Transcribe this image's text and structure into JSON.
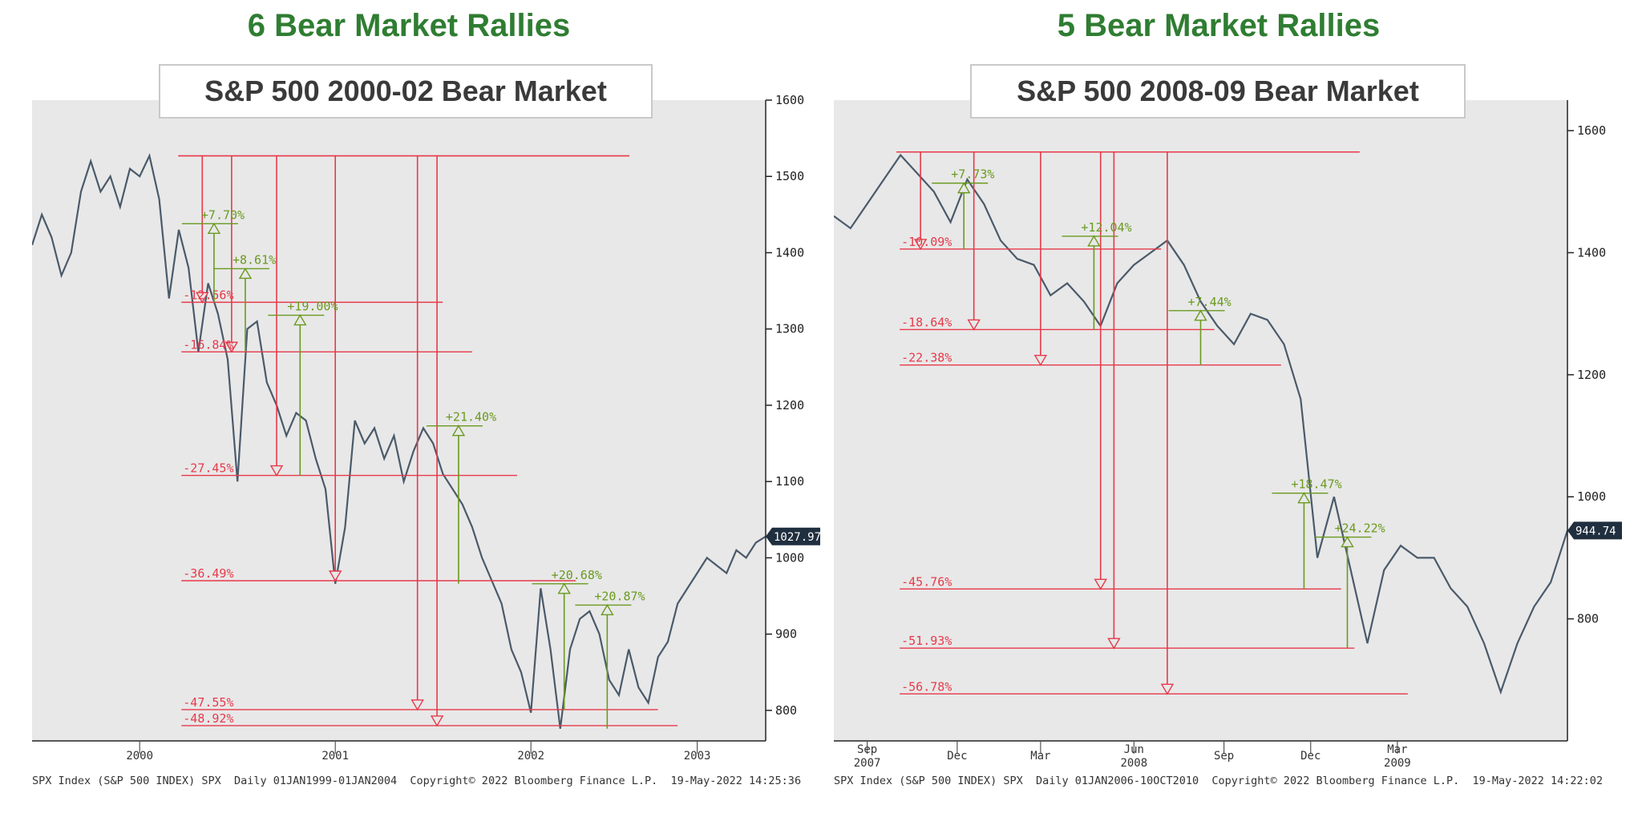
{
  "left": {
    "heading": "6 Bear Market Rallies",
    "box_title": "S&P 500 2000-02 Bear Market",
    "footer": "SPX Index (S&P 500 INDEX) SPX  Daily 01JAN1999-01JAN2004  Copyright© 2022 Bloomberg Finance L.P.  19-May-2022 14:25:36",
    "last_price": "1027.97"
  },
  "right": {
    "heading": "5 Bear Market Rallies",
    "box_title": "S&P 500 2008-09 Bear Market",
    "footer": "SPX Index (S&P 500 INDEX) SPX  Daily 01JAN2006-10OCT2010  Copyright© 2022 Bloomberg Finance L.P.  19-May-2022 14:22:02",
    "last_price": "944.74"
  },
  "colors": {
    "line": "#4a5a6a",
    "decline": "#e8394a",
    "rally": "#6a9a1f",
    "label_bg": "#1f2f3f"
  },
  "chart_data": [
    {
      "type": "line",
      "series": [
        {
          "name": "",
          "x": [
            1999.95,
            2000.0,
            2000.05,
            2000.1,
            2000.15,
            2000.2,
            2000.25,
            2000.3,
            2000.35,
            2000.4,
            2000.45,
            2000.5,
            2000.55,
            2000.6,
            2000.65,
            2000.7,
            2000.75,
            2000.8,
            2000.85,
            2000.9,
            2000.95,
            2001.0,
            2001.05,
            2001.1,
            2001.15,
            2001.2,
            2001.25,
            2001.3,
            2001.35,
            2001.4,
            2001.45,
            2001.5,
            2001.55,
            2001.6,
            2001.65,
            2001.7,
            2001.75,
            2001.8,
            2001.85,
            2001.9,
            2001.95,
            2002.0,
            2002.05,
            2002.1,
            2002.15,
            2002.2,
            2002.25,
            2002.3,
            2002.35,
            2002.4,
            2002.45,
            2002.5,
            2002.55,
            2002.6,
            2002.65,
            2002.7,
            2002.75,
            2002.8,
            2002.85,
            2002.9,
            2002.95,
            2003.0,
            2003.05,
            2003.1,
            2003.15,
            2003.2,
            2003.25,
            2003.3,
            2003.35,
            2003.4,
            2003.45,
            2003.5,
            2003.55,
            2003.6,
            2003.65,
            2003.7
          ],
          "y": [
            1410,
            1450,
            1420,
            1370,
            1400,
            1480,
            1520,
            1480,
            1500,
            1460,
            1510,
            1500,
            1527,
            1470,
            1340,
            1430,
            1380,
            1270,
            1360,
            1320,
            1260,
            1100,
            1300,
            1310,
            1230,
            1200,
            1160,
            1190,
            1180,
            1130,
            1090,
            966,
            1040,
            1180,
            1150,
            1170,
            1130,
            1160,
            1100,
            1140,
            1170,
            1150,
            1110,
            1090,
            1070,
            1040,
            1000,
            970,
            940,
            880,
            850,
            797,
            960,
            880,
            776,
            880,
            920,
            930,
            900,
            840,
            820,
            880,
            830,
            810,
            870,
            890,
            940,
            960,
            980,
            1000,
            990,
            980,
            1010,
            1000,
            1020,
            1027.97
          ]
        }
      ],
      "xlabel": "",
      "ylabel": "",
      "xlim": [
        1999.95,
        2003.7
      ],
      "ylim": [
        760,
        1600
      ],
      "xticks": [
        {
          "value": 2000.5,
          "label": "2000"
        },
        {
          "value": 2001.5,
          "label": "2001"
        },
        {
          "value": 2002.5,
          "label": "2002"
        },
        {
          "value": 2003.35,
          "label": "2003"
        }
      ],
      "yticks": [
        800,
        900,
        1000,
        1100,
        1200,
        1300,
        1400,
        1500,
        1600
      ],
      "peak": 1527,
      "declines": [
        {
          "label": "-12.56%",
          "x": 2000.82,
          "level": 1335
        },
        {
          "label": "-16.84%",
          "x": 2000.97,
          "level": 1270
        },
        {
          "label": "-27.45%",
          "x": 2001.2,
          "level": 1108
        },
        {
          "label": "-36.49%",
          "x": 2001.5,
          "level": 970
        },
        {
          "label": "-47.55%",
          "x": 2001.92,
          "level": 801
        },
        {
          "label": "-48.92%",
          "x": 2002.02,
          "level": 780
        }
      ],
      "rallies": [
        {
          "label": "+7.70%",
          "x": 2000.88,
          "from": 1335,
          "to": 1438
        },
        {
          "label": "+8.61%",
          "x": 2001.04,
          "from": 1270,
          "to": 1379
        },
        {
          "label": "+19.00%",
          "x": 2001.32,
          "from": 1108,
          "to": 1318
        },
        {
          "label": "+21.40%",
          "x": 2002.13,
          "from": 966,
          "to": 1173
        },
        {
          "label": "+20.68%",
          "x": 2002.67,
          "from": 801,
          "to": 966
        },
        {
          "label": "+20.87%",
          "x": 2002.89,
          "from": 776,
          "to": 938
        }
      ],
      "last_value": 1027.97
    },
    {
      "type": "line",
      "series": [
        {
          "name": "",
          "x": [
            2007.5,
            2007.55,
            2007.6,
            2007.65,
            2007.7,
            2007.75,
            2007.8,
            2007.85,
            2007.9,
            2007.95,
            2008.0,
            2008.05,
            2008.1,
            2008.15,
            2008.2,
            2008.25,
            2008.3,
            2008.35,
            2008.4,
            2008.45,
            2008.5,
            2008.55,
            2008.6,
            2008.65,
            2008.7,
            2008.75,
            2008.8,
            2008.85,
            2008.9,
            2008.95,
            2009.0,
            2009.05,
            2009.1,
            2009.15,
            2009.2,
            2009.25,
            2009.3,
            2009.35,
            2009.4,
            2009.45,
            2009.5,
            2009.55,
            2009.6,
            2009.65,
            2009.7
          ],
          "y": [
            1460,
            1440,
            1480,
            1520,
            1560,
            1530,
            1500,
            1450,
            1520,
            1480,
            1420,
            1390,
            1380,
            1330,
            1350,
            1320,
            1280,
            1350,
            1380,
            1400,
            1420,
            1380,
            1320,
            1280,
            1250,
            1300,
            1290,
            1250,
            1160,
            900,
            1000,
            880,
            760,
            880,
            920,
            900,
            900,
            850,
            820,
            760,
            680,
            760,
            820,
            860,
            944.74
          ]
        }
      ],
      "xlabel": "",
      "ylabel": "",
      "xlim": [
        2007.5,
        2009.7
      ],
      "ylim": [
        600,
        1650
      ],
      "xticks": [
        {
          "value": 2007.6,
          "label": "Sep",
          "year": "2007"
        },
        {
          "value": 2007.87,
          "label": "Dec"
        },
        {
          "value": 2008.12,
          "label": "Mar"
        },
        {
          "value": 2008.4,
          "label": "Jun",
          "year": "2008"
        },
        {
          "value": 2008.67,
          "label": "Sep"
        },
        {
          "value": 2008.93,
          "label": "Dec"
        },
        {
          "value": 2009.19,
          "label": "Mar",
          "year": "2009"
        }
      ],
      "yticks": [
        800,
        1000,
        1200,
        1400,
        1600
      ],
      "peak": 1565,
      "declines": [
        {
          "label": "-10.09%",
          "x": 2007.76,
          "level": 1406
        },
        {
          "label": "-18.64%",
          "x": 2007.92,
          "level": 1274
        },
        {
          "label": "-22.38%",
          "x": 2008.12,
          "level": 1216
        },
        {
          "label": "-45.76%",
          "x": 2008.3,
          "level": 849
        },
        {
          "label": "-51.93%",
          "x": 2008.34,
          "level": 752
        },
        {
          "label": "-56.78%",
          "x": 2008.5,
          "level": 677
        }
      ],
      "rallies": [
        {
          "label": "+7.73%",
          "x": 2007.89,
          "from": 1406,
          "to": 1514
        },
        {
          "label": "+12.04%",
          "x": 2008.28,
          "from": 1274,
          "to": 1427
        },
        {
          "label": "+7.44%",
          "x": 2008.6,
          "from": 1216,
          "to": 1305
        },
        {
          "label": "+18.47%",
          "x": 2008.91,
          "from": 849,
          "to": 1006
        },
        {
          "label": "+24.22%",
          "x": 2009.04,
          "from": 752,
          "to": 934
        }
      ],
      "last_value": 944.74
    }
  ]
}
